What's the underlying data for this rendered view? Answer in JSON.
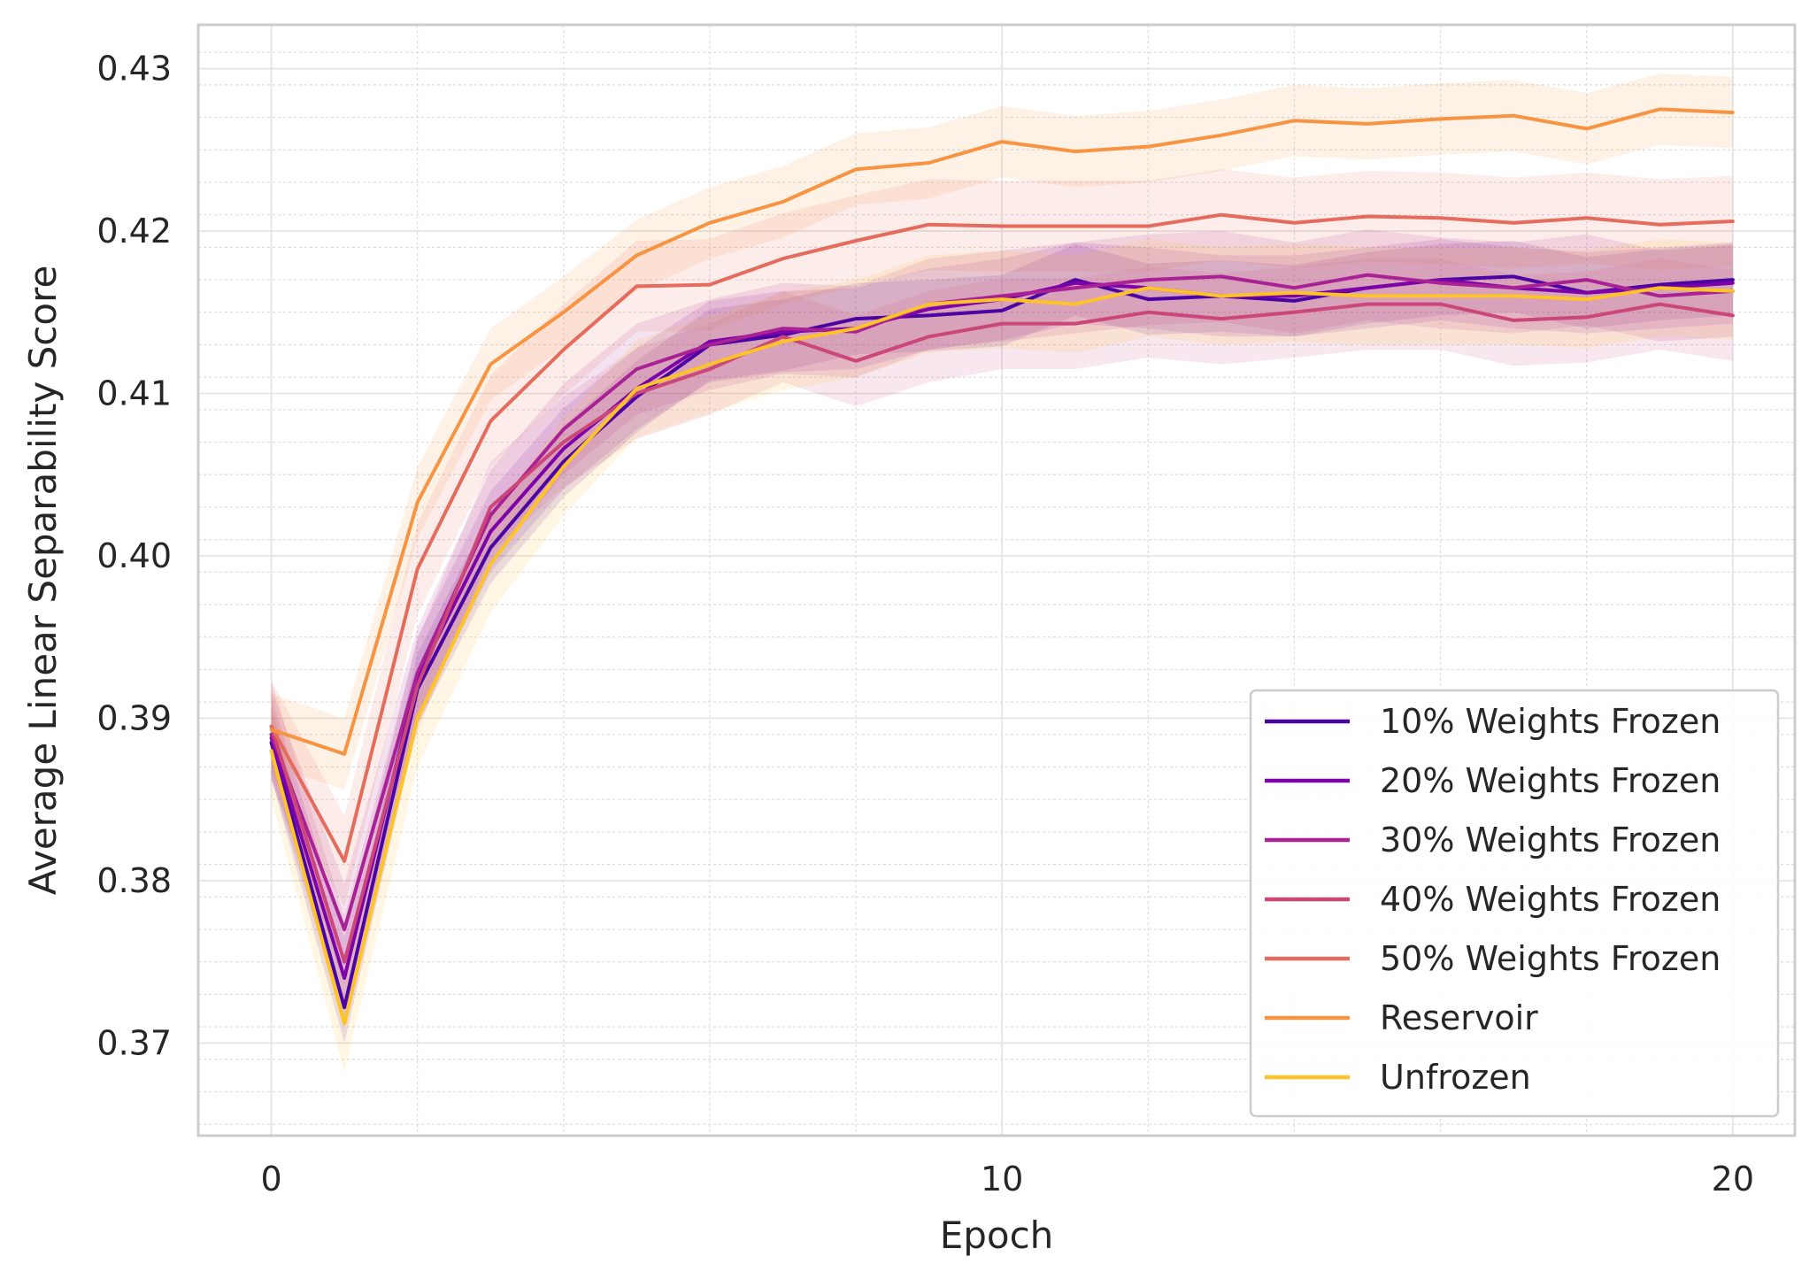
{
  "chart_data": {
    "type": "line",
    "title": "",
    "xlabel": "Epoch",
    "ylabel": "Average Linear Separability Score",
    "xlim": [
      -1,
      20.85
    ],
    "ylim": [
      0.3643,
      0.4327
    ],
    "xticks": [
      0,
      10,
      20
    ],
    "xtick_labels": [
      "0",
      "10",
      "20"
    ],
    "yticks": [
      0.37,
      0.38,
      0.39,
      0.4,
      0.41,
      0.42,
      0.43
    ],
    "ytick_labels": [
      "0.37",
      "0.38",
      "0.39",
      "0.40",
      "0.41",
      "0.42",
      "0.43"
    ],
    "grid": true,
    "legend_position": "lower-right",
    "x": [
      0,
      1,
      2,
      3,
      4,
      5,
      6,
      7,
      8,
      9,
      10,
      11,
      12,
      13,
      14,
      15,
      16,
      17,
      18,
      19,
      20
    ],
    "series": [
      {
        "name": "10% Weights Frozen",
        "color": "#4b03a1",
        "values": [
          0.3885,
          0.3722,
          0.3918,
          0.4005,
          0.4058,
          0.4098,
          0.413,
          0.4136,
          0.4146,
          0.4148,
          0.4151,
          0.417,
          0.4158,
          0.416,
          0.4157,
          0.4165,
          0.417,
          0.4172,
          0.4162,
          0.4167,
          0.417
        ],
        "band": 0.0022
      },
      {
        "name": "20% Weights Frozen",
        "color": "#7d03a8",
        "values": [
          0.3888,
          0.374,
          0.3925,
          0.4015,
          0.4066,
          0.4103,
          0.4132,
          0.4138,
          0.414,
          0.4152,
          0.4158,
          0.4168,
          0.4165,
          0.416,
          0.416,
          0.4165,
          0.417,
          0.4165,
          0.4162,
          0.4165,
          0.4168
        ],
        "band": 0.0025
      },
      {
        "name": "30% Weights Frozen",
        "color": "#a82296",
        "values": [
          0.389,
          0.377,
          0.3928,
          0.4025,
          0.4078,
          0.4115,
          0.413,
          0.414,
          0.4138,
          0.4155,
          0.416,
          0.4165,
          0.417,
          0.4172,
          0.4165,
          0.4173,
          0.4168,
          0.4165,
          0.417,
          0.416,
          0.4163
        ],
        "band": 0.0028
      },
      {
        "name": "40% Weights Frozen",
        "color": "#cb4679",
        "values": [
          0.3895,
          0.375,
          0.392,
          0.403,
          0.407,
          0.41,
          0.4115,
          0.4135,
          0.412,
          0.4135,
          0.4143,
          0.4143,
          0.415,
          0.4146,
          0.415,
          0.4155,
          0.4155,
          0.4145,
          0.4147,
          0.4155,
          0.4148
        ],
        "band": 0.0028
      },
      {
        "name": "50% Weights Frozen",
        "color": "#e56b5d",
        "values": [
          0.3895,
          0.3812,
          0.3992,
          0.4083,
          0.4127,
          0.4166,
          0.4167,
          0.4183,
          0.4194,
          0.4204,
          0.4203,
          0.4203,
          0.4203,
          0.421,
          0.4205,
          0.4209,
          0.4208,
          0.4205,
          0.4208,
          0.4204,
          0.4206
        ],
        "band": 0.0028
      },
      {
        "name": "Reservoir",
        "color": "#f89441",
        "values": [
          0.3893,
          0.3878,
          0.4033,
          0.4118,
          0.415,
          0.4185,
          0.4205,
          0.4218,
          0.4238,
          0.4242,
          0.4255,
          0.4249,
          0.4252,
          0.4259,
          0.4268,
          0.4266,
          0.4269,
          0.4271,
          0.4263,
          0.4275,
          0.4273
        ],
        "band": 0.0022
      },
      {
        "name": "Unfrozen",
        "color": "#fdc328",
        "values": [
          0.388,
          0.3712,
          0.39,
          0.3995,
          0.4055,
          0.4103,
          0.4118,
          0.4132,
          0.414,
          0.4155,
          0.4158,
          0.4155,
          0.4165,
          0.416,
          0.4162,
          0.416,
          0.416,
          0.416,
          0.4158,
          0.4165,
          0.4163
        ],
        "band": 0.003
      }
    ]
  }
}
